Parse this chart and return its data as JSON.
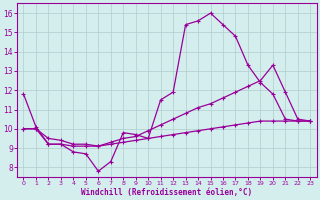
{
  "xlabel": "Windchill (Refroidissement éolien,°C)",
  "background_color": "#d4eeee",
  "grid_color": "#b0cccc",
  "line_color": "#990099",
  "xlim": [
    -0.5,
    23.5
  ],
  "ylim": [
    7.5,
    16.5
  ],
  "xticks": [
    0,
    1,
    2,
    3,
    4,
    5,
    6,
    7,
    8,
    9,
    10,
    11,
    12,
    13,
    14,
    15,
    16,
    17,
    18,
    19,
    20,
    21,
    22,
    23
  ],
  "yticks": [
    8,
    9,
    10,
    11,
    12,
    13,
    14,
    15,
    16
  ],
  "curve1_x": [
    0,
    1,
    2,
    3,
    4,
    5,
    6,
    7,
    8,
    9,
    10,
    11,
    12,
    13,
    14,
    15,
    16,
    17,
    18,
    19,
    20,
    21,
    22,
    23
  ],
  "curve1_y": [
    11.8,
    10.1,
    9.2,
    9.2,
    8.8,
    8.7,
    7.8,
    8.3,
    9.8,
    9.7,
    9.5,
    11.5,
    11.9,
    15.4,
    15.6,
    16.0,
    15.4,
    14.8,
    13.3,
    12.4,
    11.8,
    10.5,
    10.4,
    10.4
  ],
  "curve2_x": [
    0,
    1,
    2,
    3,
    4,
    5,
    6,
    7,
    8,
    9,
    10,
    11,
    12,
    13,
    14,
    15,
    16,
    17,
    18,
    19,
    20,
    21,
    22,
    23
  ],
  "curve2_y": [
    10.0,
    10.0,
    9.2,
    9.2,
    9.1,
    9.1,
    9.1,
    9.3,
    9.5,
    9.6,
    9.9,
    10.2,
    10.5,
    10.8,
    11.1,
    11.3,
    11.6,
    11.9,
    12.2,
    12.5,
    13.3,
    11.9,
    10.5,
    10.4
  ],
  "curve3_x": [
    0,
    1,
    2,
    3,
    4,
    5,
    6,
    7,
    8,
    9,
    10,
    11,
    12,
    13,
    14,
    15,
    16,
    17,
    18,
    19,
    20,
    21,
    22,
    23
  ],
  "curve3_y": [
    10.0,
    10.0,
    9.5,
    9.4,
    9.2,
    9.2,
    9.1,
    9.2,
    9.3,
    9.4,
    9.5,
    9.6,
    9.7,
    9.8,
    9.9,
    10.0,
    10.1,
    10.2,
    10.3,
    10.4,
    10.4,
    10.4,
    10.4,
    10.4
  ]
}
